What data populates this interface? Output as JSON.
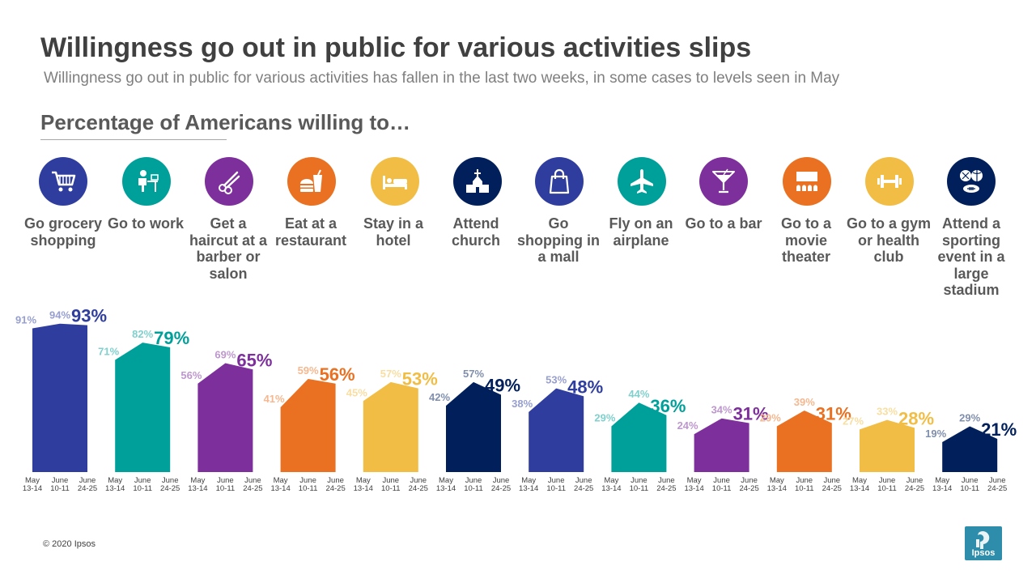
{
  "header": {
    "title": "Willingness go out in public for various activities slips",
    "subtitle": "Willingness go out in public for various activities has fallen in the last two weeks, in some cases to levels seen in May",
    "section": "Percentage of Americans willing to…"
  },
  "activities": [
    {
      "label": "Go grocery shopping",
      "icon": "shopping-cart-icon",
      "color": "#2f3e9e"
    },
    {
      "label": "Go to work",
      "icon": "office-worker-icon",
      "color": "#00a09a"
    },
    {
      "label": "Get a haircut at a barber or salon",
      "icon": "scissors-icon",
      "color": "#7d2f9c"
    },
    {
      "label": "Eat at a restaurant",
      "icon": "fast-food-icon",
      "color": "#ea7121"
    },
    {
      "label": "Stay in a hotel",
      "icon": "hotel-bed-icon",
      "color": "#f1bd45"
    },
    {
      "label": "Attend church",
      "icon": "church-icon",
      "color": "#001f5b"
    },
    {
      "label": "Go shopping in a mall",
      "icon": "shopping-bag-icon",
      "color": "#2f3e9e"
    },
    {
      "label": "Fly on an airplane",
      "icon": "airplane-icon",
      "color": "#00a09a"
    },
    {
      "label": "Go to a bar",
      "icon": "cocktail-icon",
      "color": "#7d2f9c"
    },
    {
      "label": "Go to a movie theater",
      "icon": "theater-seats-icon",
      "color": "#ea7121"
    },
    {
      "label": "Go to a gym or health club",
      "icon": "dumbbell-icon",
      "color": "#f1bd45"
    },
    {
      "label": "Attend a sporting event in a large stadium",
      "icon": "sports-balls-icon",
      "color": "#001f5b"
    }
  ],
  "chart_data": {
    "type": "area",
    "title": "Percentage of Americans willing to…",
    "time_labels": [
      {
        "line1": "May",
        "line2": "13-14"
      },
      {
        "line1": "June",
        "line2": "10-11"
      },
      {
        "line1": "June",
        "line2": "24-25"
      }
    ],
    "ylim": [
      0,
      100
    ],
    "series": [
      {
        "name": "Go grocery shopping",
        "values": [
          91,
          94,
          93
        ],
        "labels": [
          "91%",
          "94%",
          "93%"
        ]
      },
      {
        "name": "Go to work",
        "values": [
          71,
          82,
          79
        ],
        "labels": [
          "71%",
          "82%",
          "79%"
        ]
      },
      {
        "name": "Get a haircut at a barber or salon",
        "values": [
          56,
          69,
          65
        ],
        "labels": [
          "56%",
          "69%",
          "65%"
        ]
      },
      {
        "name": "Eat at a restaurant",
        "values": [
          41,
          59,
          56
        ],
        "labels": [
          "41%",
          "59%",
          "56%"
        ]
      },
      {
        "name": "Stay in a hotel",
        "values": [
          45,
          57,
          53
        ],
        "labels": [
          "45%",
          "57%",
          "53%"
        ]
      },
      {
        "name": "Attend church",
        "values": [
          42,
          57,
          49
        ],
        "labels": [
          "42%",
          "57%",
          "49%"
        ]
      },
      {
        "name": "Go shopping in a mall",
        "values": [
          38,
          53,
          48
        ],
        "labels": [
          "38%",
          "53%",
          "48%"
        ]
      },
      {
        "name": "Fly on an airplane",
        "values": [
          29,
          44,
          36
        ],
        "labels": [
          "29%",
          "44%",
          "36%"
        ]
      },
      {
        "name": "Go to a bar",
        "values": [
          24,
          34,
          31
        ],
        "labels": [
          "24%",
          "34%",
          "31%"
        ]
      },
      {
        "name": "Go to a movie theater",
        "values": [
          29,
          39,
          31
        ],
        "labels": [
          "29%",
          "39%",
          "31%"
        ]
      },
      {
        "name": "Go to a gym or health club",
        "values": [
          27,
          33,
          28
        ],
        "labels": [
          "27%",
          "33%",
          "28%"
        ]
      },
      {
        "name": "Attend a sporting event in a large stadium",
        "values": [
          19,
          29,
          21
        ],
        "labels": [
          "19%",
          "29%",
          "21%"
        ]
      }
    ]
  },
  "footer": {
    "copyright": "© 2020 Ipsos"
  },
  "logo": {
    "text": "Ipsos"
  }
}
